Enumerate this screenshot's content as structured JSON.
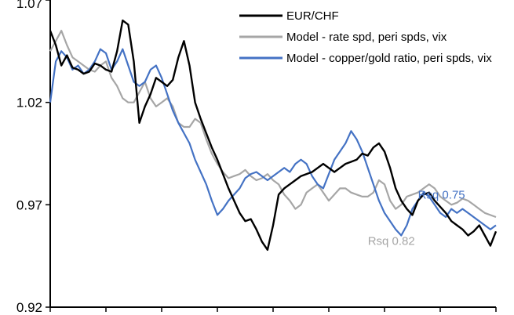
{
  "chart_data": {
    "type": "line",
    "title": "",
    "xlabel": "",
    "ylabel": "",
    "ylim": [
      0.92,
      1.07
    ],
    "yticks": [
      0.92,
      0.97,
      1.02,
      1.07
    ],
    "ytick_labels": [
      "0.92",
      "0.97",
      "1.02",
      "1.07"
    ],
    "grid": false,
    "legend_position": "top-right",
    "colors": {
      "EUR/CHF": "#000000",
      "rate_model": "#a6a6a6",
      "copper_model": "#4472c4"
    },
    "series": [
      {
        "name": "EUR/CHF",
        "color": "#000000",
        "x": [
          0,
          1,
          2,
          3,
          4,
          5,
          6,
          7,
          8,
          9,
          10,
          11,
          12,
          13,
          14,
          15,
          16,
          17,
          18,
          19,
          20,
          21,
          22,
          23,
          24,
          25,
          26,
          27,
          28,
          29,
          30,
          31,
          32,
          33,
          34,
          35,
          36,
          37,
          38,
          39,
          40,
          41,
          42,
          43,
          44,
          45,
          46,
          47,
          48,
          49,
          50,
          51,
          52,
          53,
          54,
          55,
          56,
          57,
          58,
          59,
          60,
          61,
          62,
          63,
          64,
          65,
          66,
          67,
          68,
          69,
          70,
          71,
          72,
          73,
          74,
          75,
          76,
          77,
          78,
          79,
          80
        ],
        "values": [
          1.055,
          1.048,
          1.038,
          1.043,
          1.037,
          1.036,
          1.034,
          1.035,
          1.039,
          1.038,
          1.036,
          1.035,
          1.045,
          1.06,
          1.058,
          1.04,
          1.01,
          1.018,
          1.024,
          1.032,
          1.03,
          1.028,
          1.031,
          1.042,
          1.05,
          1.038,
          1.02,
          1.012,
          1.005,
          0.998,
          0.992,
          0.985,
          0.978,
          0.972,
          0.966,
          0.962,
          0.963,
          0.958,
          0.952,
          0.948,
          0.96,
          0.975,
          0.978,
          0.98,
          0.982,
          0.984,
          0.985,
          0.986,
          0.988,
          0.99,
          0.988,
          0.986,
          0.988,
          0.99,
          0.991,
          0.992,
          0.995,
          0.994,
          0.998,
          1.0,
          0.996,
          0.988,
          0.978,
          0.972,
          0.968,
          0.965,
          0.972,
          0.975,
          0.976,
          0.972,
          0.969,
          0.966,
          0.962,
          0.96,
          0.958,
          0.955,
          0.957,
          0.96,
          0.955,
          0.95,
          0.957
        ]
      },
      {
        "name": "Model - rate spd, peri spds, vix",
        "color": "#a6a6a6",
        "x": [
          0,
          1,
          2,
          3,
          4,
          5,
          6,
          7,
          8,
          9,
          10,
          11,
          12,
          13,
          14,
          15,
          16,
          17,
          18,
          19,
          20,
          21,
          22,
          23,
          24,
          25,
          26,
          27,
          28,
          29,
          30,
          31,
          32,
          33,
          34,
          35,
          36,
          37,
          38,
          39,
          40,
          41,
          42,
          43,
          44,
          45,
          46,
          47,
          48,
          49,
          50,
          51,
          52,
          53,
          54,
          55,
          56,
          57,
          58,
          59,
          60,
          61,
          62,
          63,
          64,
          65,
          66,
          67,
          68,
          69,
          70,
          71,
          72,
          73,
          74,
          75,
          76,
          77,
          78,
          79,
          80
        ],
        "values": [
          1.045,
          1.05,
          1.055,
          1.048,
          1.042,
          1.04,
          1.038,
          1.036,
          1.035,
          1.038,
          1.04,
          1.032,
          1.028,
          1.022,
          1.02,
          1.02,
          1.025,
          1.03,
          1.022,
          1.018,
          1.02,
          1.022,
          1.018,
          1.01,
          1.008,
          1.008,
          1.012,
          1.01,
          1.002,
          0.995,
          0.99,
          0.986,
          0.983,
          0.984,
          0.985,
          0.987,
          0.984,
          0.982,
          0.983,
          0.985,
          0.982,
          0.98,
          0.975,
          0.972,
          0.968,
          0.97,
          0.976,
          0.978,
          0.98,
          0.976,
          0.972,
          0.975,
          0.978,
          0.978,
          0.976,
          0.975,
          0.974,
          0.974,
          0.976,
          0.982,
          0.98,
          0.972,
          0.968,
          0.97,
          0.974,
          0.975,
          0.976,
          0.978,
          0.98,
          0.978,
          0.974,
          0.972,
          0.97,
          0.971,
          0.973,
          0.972,
          0.97,
          0.968,
          0.966,
          0.965,
          0.964
        ]
      },
      {
        "name": "Model - copper/gold ratio, peri spds, vix",
        "color": "#4472c4",
        "x": [
          0,
          1,
          2,
          3,
          4,
          5,
          6,
          7,
          8,
          9,
          10,
          11,
          12,
          13,
          14,
          15,
          16,
          17,
          18,
          19,
          20,
          21,
          22,
          23,
          24,
          25,
          26,
          27,
          28,
          29,
          30,
          31,
          32,
          33,
          34,
          35,
          36,
          37,
          38,
          39,
          40,
          41,
          42,
          43,
          44,
          45,
          46,
          47,
          48,
          49,
          50,
          51,
          52,
          53,
          54,
          55,
          56,
          57,
          58,
          59,
          60,
          61,
          62,
          63,
          64,
          65,
          66,
          67,
          68,
          69,
          70,
          71,
          72,
          73,
          74,
          75,
          76,
          77,
          78,
          79,
          80
        ],
        "values": [
          1.02,
          1.04,
          1.045,
          1.042,
          1.036,
          1.038,
          1.034,
          1.036,
          1.04,
          1.046,
          1.044,
          1.036,
          1.04,
          1.046,
          1.038,
          1.03,
          1.028,
          1.03,
          1.036,
          1.038,
          1.032,
          1.024,
          1.016,
          1.01,
          1.005,
          1.0,
          0.992,
          0.986,
          0.98,
          0.972,
          0.965,
          0.968,
          0.972,
          0.975,
          0.978,
          0.983,
          0.985,
          0.986,
          0.984,
          0.982,
          0.984,
          0.986,
          0.988,
          0.986,
          0.99,
          0.992,
          0.99,
          0.984,
          0.98,
          0.978,
          0.985,
          0.992,
          0.996,
          1.0,
          1.006,
          1.002,
          0.996,
          0.988,
          0.98,
          0.972,
          0.966,
          0.962,
          0.958,
          0.955,
          0.96,
          0.968,
          0.972,
          0.976,
          0.974,
          0.97,
          0.966,
          0.964,
          0.968,
          0.966,
          0.968,
          0.966,
          0.964,
          0.962,
          0.96,
          0.958,
          0.96
        ]
      }
    ],
    "annotations": [
      {
        "text": "Rsq 0.75",
        "color": "#4472c4",
        "at_x": 66,
        "at_y": 0.973
      },
      {
        "text": "Rsq 0.82",
        "color": "#a6a6a6",
        "at_x": 57,
        "at_y": 0.9505
      }
    ]
  }
}
